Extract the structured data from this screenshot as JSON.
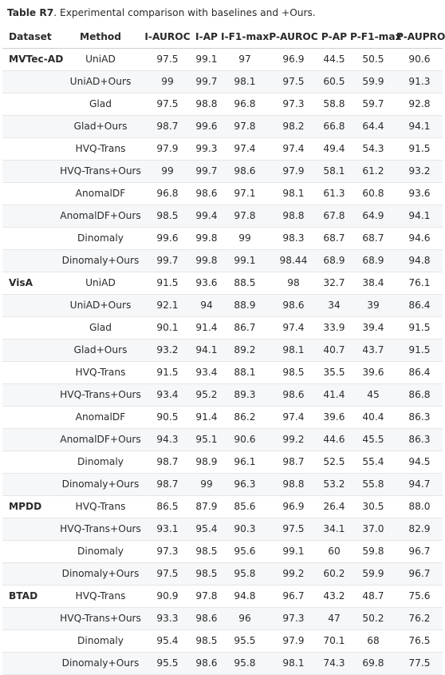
{
  "caption": {
    "label": "Table R7",
    "text": ". Experimental comparison with baselines and +Ours."
  },
  "headers": [
    "Dataset",
    "Method",
    "I-AUROC",
    "I-AP",
    "I-F1-max",
    "P-AUROC",
    "P-AP",
    "P-F1-max",
    "P-AUPRO"
  ],
  "rows": [
    [
      "MVTec-AD",
      "UniAD",
      "97.5",
      "99.1",
      "97",
      "96.9",
      "44.5",
      "50.5",
      "90.6"
    ],
    [
      "",
      "UniAD+Ours",
      "99",
      "99.7",
      "98.1",
      "97.5",
      "60.5",
      "59.9",
      "91.3"
    ],
    [
      "",
      "Glad",
      "97.5",
      "98.8",
      "96.8",
      "97.3",
      "58.8",
      "59.7",
      "92.8"
    ],
    [
      "",
      "Glad+Ours",
      "98.7",
      "99.6",
      "97.8",
      "98.2",
      "66.8",
      "64.4",
      "94.1"
    ],
    [
      "",
      "HVQ-Trans",
      "97.9",
      "99.3",
      "97.4",
      "97.4",
      "49.4",
      "54.3",
      "91.5"
    ],
    [
      "",
      "HVQ-Trans+Ours",
      "99",
      "99.7",
      "98.6",
      "97.9",
      "58.1",
      "61.2",
      "93.2"
    ],
    [
      "",
      "AnomalDF",
      "96.8",
      "98.6",
      "97.1",
      "98.1",
      "61.3",
      "60.8",
      "93.6"
    ],
    [
      "",
      "AnomalDF+Ours",
      "98.5",
      "99.4",
      "97.8",
      "98.8",
      "67.8",
      "64.9",
      "94.1"
    ],
    [
      "",
      "Dinomaly",
      "99.6",
      "99.8",
      "99",
      "98.3",
      "68.7",
      "68.7",
      "94.6"
    ],
    [
      "",
      "Dinomaly+Ours",
      "99.7",
      "99.8",
      "99.1",
      "98.44",
      "68.9",
      "68.9",
      "94.8"
    ],
    [
      "VisA",
      "UniAD",
      "91.5",
      "93.6",
      "88.5",
      "98",
      "32.7",
      "38.4",
      "76.1"
    ],
    [
      "",
      "UniAD+Ours",
      "92.1",
      "94",
      "88.9",
      "98.6",
      "34",
      "39",
      "86.4"
    ],
    [
      "",
      "Glad",
      "90.1",
      "91.4",
      "86.7",
      "97.4",
      "33.9",
      "39.4",
      "91.5"
    ],
    [
      "",
      "Glad+Ours",
      "93.2",
      "94.1",
      "89.2",
      "98.1",
      "40.7",
      "43.7",
      "91.5"
    ],
    [
      "",
      "HVQ-Trans",
      "91.5",
      "93.4",
      "88.1",
      "98.5",
      "35.5",
      "39.6",
      "86.4"
    ],
    [
      "",
      "HVQ-Trans+Ours",
      "93.4",
      "95.2",
      "89.3",
      "98.6",
      "41.4",
      "45",
      "86.8"
    ],
    [
      "",
      "AnomalDF",
      "90.5",
      "91.4",
      "86.2",
      "97.4",
      "39.6",
      "40.4",
      "86.3"
    ],
    [
      "",
      "AnomalDF+Ours",
      "94.3",
      "95.1",
      "90.6",
      "99.2",
      "44.6",
      "45.5",
      "86.3"
    ],
    [
      "",
      "Dinomaly",
      "98.7",
      "98.9",
      "96.1",
      "98.7",
      "52.5",
      "55.4",
      "94.5"
    ],
    [
      "",
      "Dinomaly+Ours",
      "98.7",
      "99",
      "96.3",
      "98.8",
      "53.2",
      "55.8",
      "94.7"
    ],
    [
      "MPDD",
      "HVQ-Trans",
      "86.5",
      "87.9",
      "85.6",
      "96.9",
      "26.4",
      "30.5",
      "88.0"
    ],
    [
      "",
      "HVQ-Trans+Ours",
      "93.1",
      "95.4",
      "90.3",
      "97.5",
      "34.1",
      "37.0",
      "82.9"
    ],
    [
      "",
      "Dinomaly",
      "97.3",
      "98.5",
      "95.6",
      "99.1",
      "60",
      "59.8",
      "96.7"
    ],
    [
      "",
      "Dinomaly+Ours",
      "97.5",
      "98.5",
      "95.8",
      "99.2",
      "60.2",
      "59.9",
      "96.7"
    ],
    [
      "BTAD",
      "HVQ-Trans",
      "90.9",
      "97.8",
      "94.8",
      "96.7",
      "43.2",
      "48.7",
      "75.6"
    ],
    [
      "",
      "HVQ-Trans+Ours",
      "93.3",
      "98.6",
      "96",
      "97.3",
      "47",
      "50.2",
      "76.2"
    ],
    [
      "",
      "Dinomaly",
      "95.4",
      "98.5",
      "95.5",
      "97.9",
      "70.1",
      "68",
      "76.5"
    ],
    [
      "",
      "Dinomaly+Ours",
      "95.5",
      "98.6",
      "95.8",
      "98.1",
      "74.3",
      "69.8",
      "77.5"
    ]
  ]
}
